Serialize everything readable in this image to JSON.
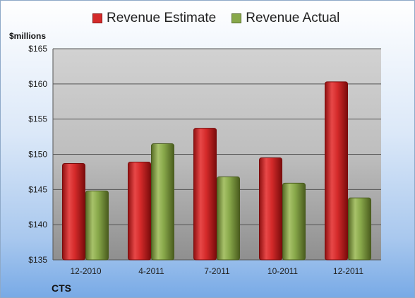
{
  "chart_data": {
    "type": "bar",
    "categories": [
      "12-2010",
      "4-2011",
      "7-2011",
      "10-2011",
      "12-2011"
    ],
    "series": [
      {
        "name": "Revenue Estimate",
        "color": "#d42a2a",
        "values": [
          148.7,
          148.9,
          153.7,
          149.5,
          160.3
        ]
      },
      {
        "name": "Revenue Actual",
        "color": "#88a84a",
        "values": [
          144.8,
          151.5,
          146.8,
          145.9,
          143.8
        ]
      }
    ],
    "ylabel": "$millions",
    "ylim": [
      135,
      165
    ],
    "yticks": [
      135,
      140,
      145,
      150,
      155,
      160,
      165
    ],
    "ytick_prefix": "$",
    "grid": true,
    "legend_position": "top",
    "footer_label": "CTS"
  }
}
